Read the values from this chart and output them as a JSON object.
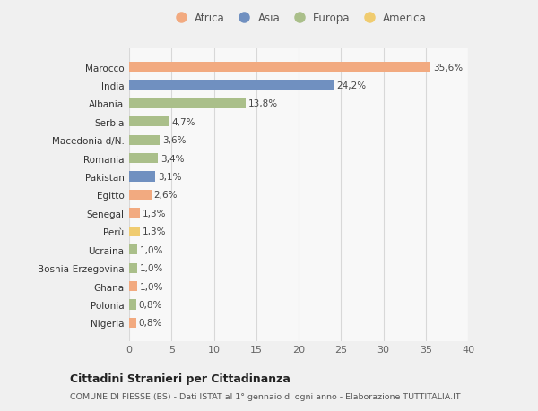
{
  "countries": [
    "Nigeria",
    "Polonia",
    "Ghana",
    "Bosnia-Erzegovina",
    "Ucraina",
    "Perù",
    "Senegal",
    "Egitto",
    "Pakistan",
    "Romania",
    "Macedonia d/N.",
    "Serbia",
    "Albania",
    "India",
    "Marocco"
  ],
  "values": [
    0.8,
    0.8,
    1.0,
    1.0,
    1.0,
    1.3,
    1.3,
    2.6,
    3.1,
    3.4,
    3.6,
    4.7,
    13.8,
    24.2,
    35.6
  ],
  "labels": [
    "0,8%",
    "0,8%",
    "1,0%",
    "1,0%",
    "1,0%",
    "1,3%",
    "1,3%",
    "2,6%",
    "3,1%",
    "3,4%",
    "3,6%",
    "4,7%",
    "13,8%",
    "24,2%",
    "35,6%"
  ],
  "continents": [
    "Africa",
    "Europa",
    "Africa",
    "Europa",
    "Europa",
    "America",
    "Africa",
    "Africa",
    "Asia",
    "Europa",
    "Europa",
    "Europa",
    "Europa",
    "Asia",
    "Africa"
  ],
  "continent_colors": {
    "Africa": "#F2AA80",
    "Asia": "#7090C0",
    "Europa": "#AABF8A",
    "America": "#F0CC70"
  },
  "legend_order": [
    "Africa",
    "Asia",
    "Europa",
    "America"
  ],
  "bg_color": "#f0f0f0",
  "plot_bg_color": "#f8f8f8",
  "title1": "Cittadini Stranieri per Cittadinanza",
  "title2": "COMUNE DI FIESSE (BS) - Dati ISTAT al 1° gennaio di ogni anno - Elaborazione TUTTITALIA.IT",
  "xlim": [
    0,
    40
  ],
  "xticks": [
    0,
    5,
    10,
    15,
    20,
    25,
    30,
    35,
    40
  ]
}
